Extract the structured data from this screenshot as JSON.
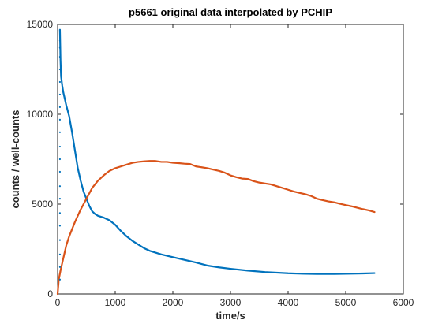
{
  "chart_data": {
    "type": "line",
    "title": "p5661 original data interpolated by PCHIP",
    "xlabel": "time/s",
    "ylabel": "counts / well-counts",
    "xlim": [
      0,
      6000
    ],
    "ylim": [
      0,
      15000
    ],
    "xticks": [
      0,
      1000,
      2000,
      3000,
      4000,
      5000,
      6000
    ],
    "yticks": [
      0,
      5000,
      10000,
      15000
    ],
    "grid": false,
    "legend": "none",
    "series": [
      {
        "color": "#0072BD",
        "x": [
          40,
          50,
          60,
          80,
          100,
          150,
          200,
          250,
          300,
          350,
          400,
          450,
          500,
          550,
          600,
          650,
          700,
          800,
          900,
          1000,
          1100,
          1200,
          1300,
          1400,
          1500,
          1600,
          1700,
          1800,
          2000,
          2200,
          2400,
          2600,
          2800,
          3000,
          3300,
          3600,
          4000,
          4300,
          4500,
          4800,
          5000,
          5300,
          5500
        ],
        "y": [
          14700,
          13000,
          12100,
          11600,
          11200,
          10500,
          9900,
          9000,
          8000,
          7000,
          6300,
          5700,
          5300,
          4900,
          4600,
          4450,
          4350,
          4250,
          4100,
          3850,
          3500,
          3200,
          2950,
          2750,
          2550,
          2400,
          2300,
          2200,
          2050,
          1900,
          1750,
          1580,
          1480,
          1400,
          1300,
          1220,
          1150,
          1120,
          1110,
          1110,
          1120,
          1140,
          1160
        ]
      },
      {
        "color": "#D95319",
        "x": [
          0,
          20,
          50,
          100,
          150,
          200,
          250,
          300,
          400,
          500,
          600,
          700,
          800,
          900,
          1000,
          1100,
          1200,
          1300,
          1400,
          1500,
          1600,
          1700,
          1800,
          1900,
          2000,
          2100,
          2200,
          2300,
          2400,
          2500,
          2600,
          2700,
          2800,
          2900,
          3000,
          3100,
          3200,
          3300,
          3400,
          3500,
          3600,
          3700,
          3800,
          3900,
          4000,
          4100,
          4200,
          4300,
          4400,
          4500,
          4600,
          4700,
          4800,
          4900,
          5000,
          5100,
          5200,
          5300,
          5400,
          5500
        ],
        "y": [
          0,
          800,
          1300,
          2000,
          2700,
          3200,
          3600,
          4000,
          4700,
          5300,
          5900,
          6300,
          6600,
          6850,
          7000,
          7100,
          7200,
          7300,
          7350,
          7380,
          7400,
          7400,
          7350,
          7350,
          7300,
          7280,
          7250,
          7230,
          7100,
          7050,
          7000,
          6920,
          6850,
          6750,
          6600,
          6500,
          6420,
          6400,
          6280,
          6200,
          6150,
          6100,
          6000,
          5900,
          5800,
          5700,
          5620,
          5550,
          5450,
          5300,
          5220,
          5150,
          5100,
          5020,
          4950,
          4880,
          4800,
          4720,
          4650,
          4560
        ]
      }
    ],
    "sample_markers": {
      "color": "#0072BD",
      "x": [
        40,
        40,
        40,
        40,
        40,
        40,
        40,
        40,
        40,
        40,
        40,
        40,
        40,
        40,
        40,
        40,
        40,
        40,
        40,
        40,
        40,
        40
      ],
      "y": [
        800,
        1500,
        2200,
        3000,
        3800,
        4500,
        5300,
        6000,
        6800,
        7500,
        8200,
        9000,
        9700,
        10400,
        11100,
        11800,
        12500,
        13200,
        13700,
        14100,
        14400,
        14700
      ]
    }
  }
}
